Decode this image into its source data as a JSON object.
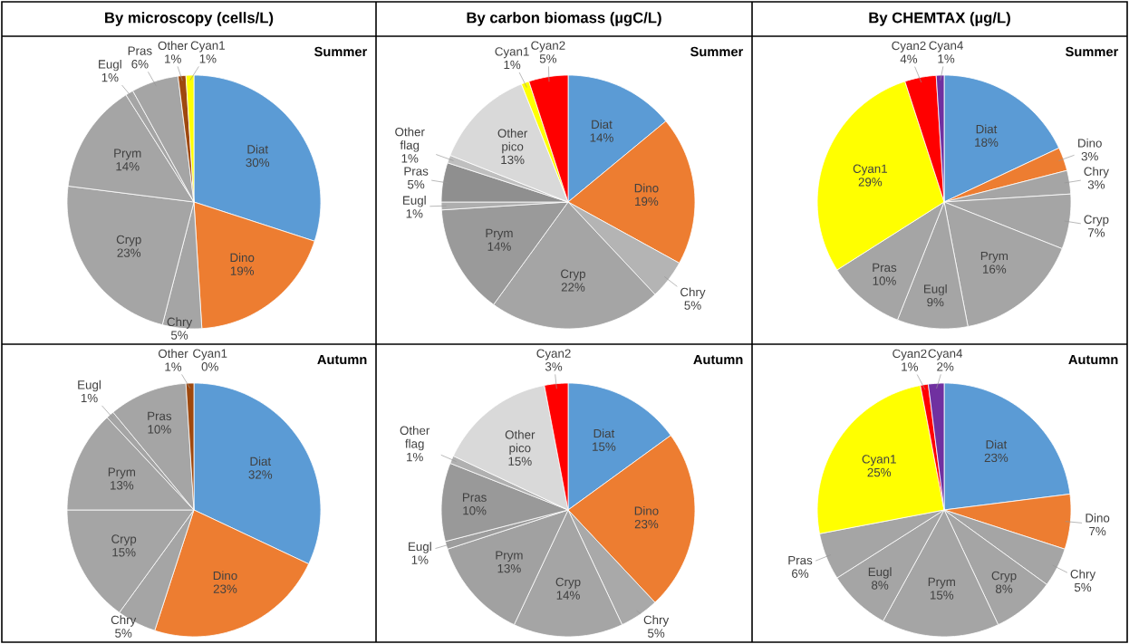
{
  "chart_data": [
    {
      "type": "pie",
      "title": "By microscopy (cells/L)",
      "subtitle": "Summer",
      "categories": [
        "Diat",
        "Dino",
        "Chry",
        "Cryp",
        "Prym",
        "Eugl",
        "Pras",
        "Other",
        "Cyan1"
      ],
      "values": [
        30,
        19,
        5,
        23,
        14,
        1,
        6,
        1,
        1
      ],
      "value_labels": [
        "30%",
        "19%",
        "5%",
        "23%",
        "14%",
        "1%",
        "6%",
        "1%",
        "1%"
      ],
      "colors": [
        "#5b9bd5",
        "#ed7d31",
        "#a5a5a5",
        "#a5a5a5",
        "#a5a5a5",
        "#a5a5a5",
        "#a5a5a5",
        "#9e480e",
        "#ffff00"
      ]
    },
    {
      "type": "pie",
      "title": "By carbon biomass (µgC/L)",
      "subtitle": "Summer",
      "categories": [
        "Diat",
        "Dino",
        "Chry",
        "Cryp",
        "Prym",
        "Eugl",
        "Pras",
        "Other flag",
        "Other pico",
        "Cyan1",
        "Cyan2"
      ],
      "values": [
        14,
        19,
        5,
        22,
        14,
        1,
        5,
        1,
        13,
        1,
        5
      ],
      "value_labels": [
        "14%",
        "19%",
        "5%",
        "22%",
        "14%",
        "1%",
        "5%",
        "1%",
        "13%",
        "1%",
        "5%"
      ],
      "colors": [
        "#5b9bd5",
        "#ed7d31",
        "#b4b4b4",
        "#a5a5a5",
        "#9a9a9a",
        "#aeaeae",
        "#8f8f8f",
        "#bfbfbf",
        "#d9d9d9",
        "#ffff00",
        "#ff0000"
      ]
    },
    {
      "type": "pie",
      "title": "By CHEMTAX (µg/L)",
      "subtitle": "Summer",
      "categories": [
        "Diat",
        "Dino",
        "Chry",
        "Cryp",
        "Prym",
        "Eugl",
        "Pras",
        "Cyan1",
        "Cyan2",
        "Cyan4"
      ],
      "values": [
        18,
        3,
        3,
        7,
        16,
        9,
        10,
        29,
        4,
        1
      ],
      "value_labels": [
        "18%",
        "3%",
        "3%",
        "7%",
        "16%",
        "9%",
        "10%",
        "29%",
        "4%",
        "1%"
      ],
      "colors": [
        "#5b9bd5",
        "#ed7d31",
        "#a5a5a5",
        "#a5a5a5",
        "#a5a5a5",
        "#a5a5a5",
        "#a5a5a5",
        "#ffff00",
        "#ff0000",
        "#7030a0"
      ]
    },
    {
      "type": "pie",
      "subtitle": "Autumn",
      "categories": [
        "Diat",
        "Dino",
        "Chry",
        "Cryp",
        "Prym",
        "Eugl",
        "Pras",
        "Other",
        "Cyan1"
      ],
      "values": [
        32,
        23,
        5,
        15,
        13,
        1,
        10,
        1,
        0
      ],
      "value_labels": [
        "32%",
        "23%",
        "5%",
        "15%",
        "13%",
        "1%",
        "10%",
        "1%",
        "0%"
      ],
      "colors": [
        "#5b9bd5",
        "#ed7d31",
        "#a5a5a5",
        "#a5a5a5",
        "#a5a5a5",
        "#a5a5a5",
        "#a5a5a5",
        "#9e480e",
        "#ffff00"
      ]
    },
    {
      "type": "pie",
      "subtitle": "Autumn",
      "categories": [
        "Diat",
        "Dino",
        "Chry",
        "Cryp",
        "Prym",
        "Eugl",
        "Pras",
        "Other flag",
        "Other pico",
        "Cyan2"
      ],
      "values": [
        15,
        23,
        5,
        14,
        13,
        1,
        10,
        1,
        15,
        3
      ],
      "value_labels": [
        "15%",
        "23%",
        "5%",
        "14%",
        "13%",
        "1%",
        "10%",
        "1%",
        "15%",
        "3%"
      ],
      "colors": [
        "#5b9bd5",
        "#ed7d31",
        "#a9a9a9",
        "#a5a5a5",
        "#a1a1a1",
        "#9d9d9d",
        "#999999",
        "#b0b0b0",
        "#d9d9d9",
        "#ff0000"
      ]
    },
    {
      "type": "pie",
      "subtitle": "Autumn",
      "categories": [
        "Diat",
        "Dino",
        "Chry",
        "Cryp",
        "Prym",
        "Eugl",
        "Pras",
        "Cyan1",
        "Cyan2",
        "Cyan4"
      ],
      "values": [
        23,
        7,
        5,
        8,
        15,
        8,
        6,
        25,
        1,
        2
      ],
      "value_labels": [
        "23%",
        "7%",
        "5%",
        "8%",
        "15%",
        "8%",
        "6%",
        "25%",
        "1%",
        "2%"
      ],
      "colors": [
        "#5b9bd5",
        "#ed7d31",
        "#a5a5a5",
        "#a5a5a5",
        "#a5a5a5",
        "#a5a5a5",
        "#a5a5a5",
        "#ffff00",
        "#ff0000",
        "#7030a0"
      ]
    }
  ]
}
